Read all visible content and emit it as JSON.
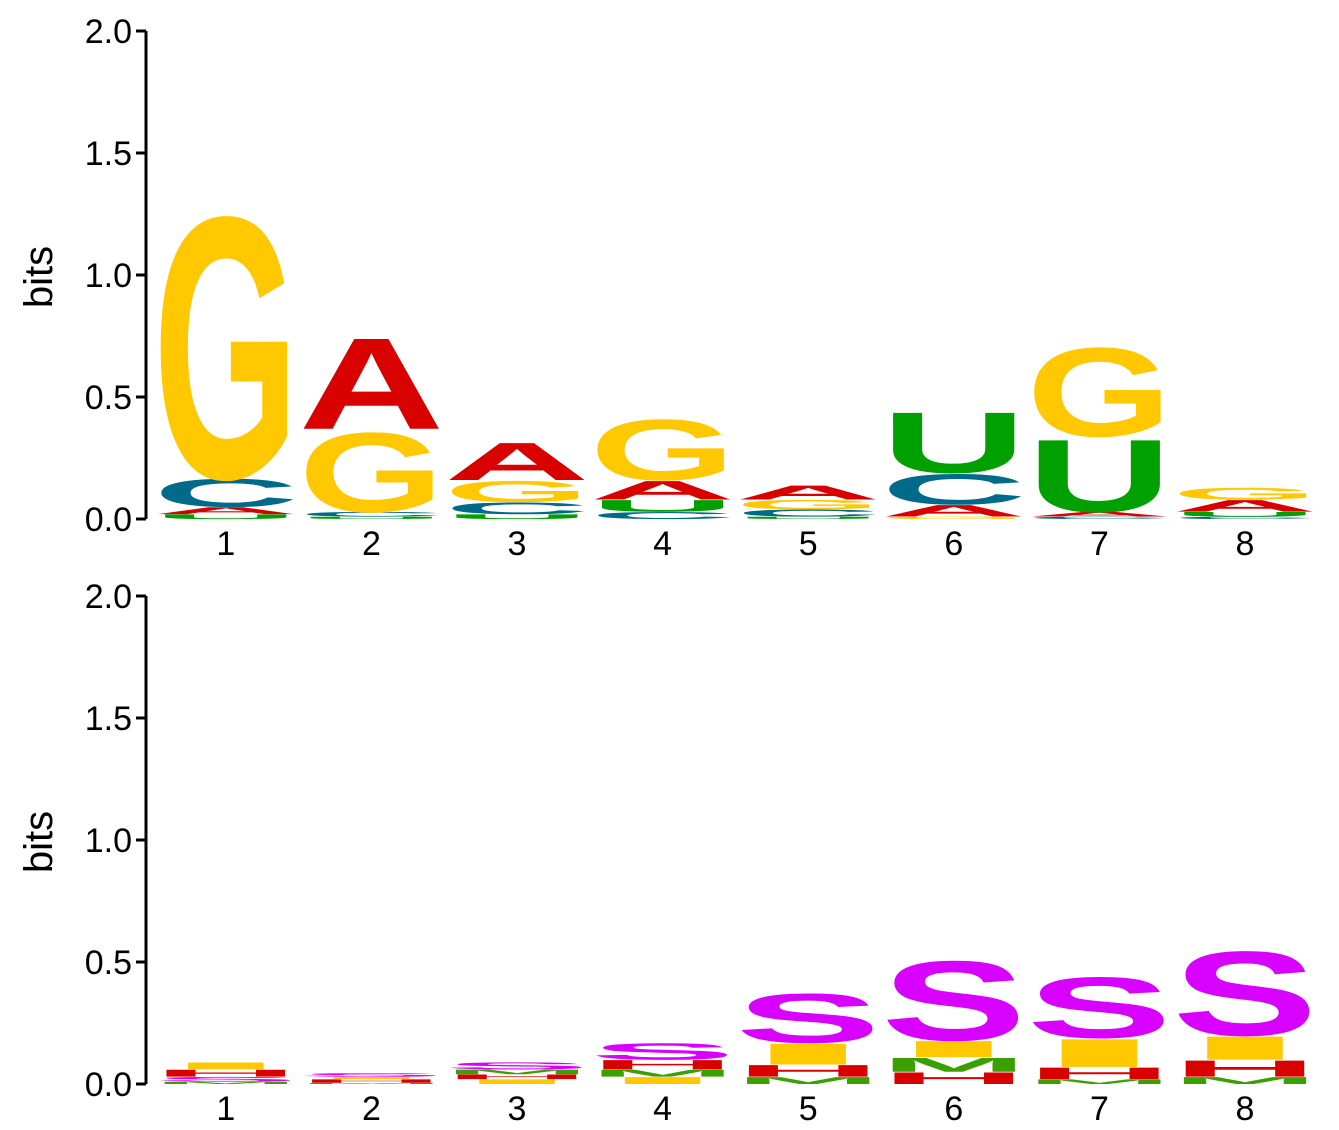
{
  "chart_data": [
    {
      "type": "sequence-logo",
      "ylabel": "bits",
      "ylim": [
        0,
        2.0
      ],
      "yticks": [
        "0.0",
        "0.5",
        "1.0",
        "1.5",
        "2.0"
      ],
      "positions": [
        "1",
        "2",
        "3",
        "4",
        "5",
        "6",
        "7",
        "8"
      ],
      "stacks": [
        [
          {
            "letter": "U",
            "bits": 0.02
          },
          {
            "letter": "A",
            "bits": 0.03
          },
          {
            "letter": "C",
            "bits": 0.12
          },
          {
            "letter": "G",
            "bits": 1.12
          }
        ],
        [
          {
            "letter": "U",
            "bits": 0.01
          },
          {
            "letter": "C",
            "bits": 0.02
          },
          {
            "letter": "G",
            "bits": 0.34
          },
          {
            "letter": "A",
            "bits": 0.39
          }
        ],
        [
          {
            "letter": "U",
            "bits": 0.02
          },
          {
            "letter": "C",
            "bits": 0.05
          },
          {
            "letter": "G",
            "bits": 0.09
          },
          {
            "letter": "A",
            "bits": 0.16
          }
        ],
        [
          {
            "letter": "C",
            "bits": 0.03
          },
          {
            "letter": "U",
            "bits": 0.05
          },
          {
            "letter": "A",
            "bits": 0.08
          },
          {
            "letter": "G",
            "bits": 0.26
          }
        ],
        [
          {
            "letter": "U",
            "bits": 0.01
          },
          {
            "letter": "C",
            "bits": 0.03
          },
          {
            "letter": "G",
            "bits": 0.04
          },
          {
            "letter": "A",
            "bits": 0.06
          }
        ],
        [
          {
            "letter": "G",
            "bits": 0.01
          },
          {
            "letter": "A",
            "bits": 0.05
          },
          {
            "letter": "C",
            "bits": 0.13
          },
          {
            "letter": "U",
            "bits": 0.26
          }
        ],
        [
          {
            "letter": "C",
            "bits": 0.01
          },
          {
            "letter": "A",
            "bits": 0.02
          },
          {
            "letter": "U",
            "bits": 0.31
          },
          {
            "letter": "G",
            "bits": 0.38
          }
        ],
        [
          {
            "letter": "C",
            "bits": 0.01
          },
          {
            "letter": "U",
            "bits": 0.02
          },
          {
            "letter": "A",
            "bits": 0.05
          },
          {
            "letter": "G",
            "bits": 0.05
          }
        ]
      ]
    },
    {
      "type": "sequence-logo",
      "ylabel": "bits",
      "ylim": [
        0,
        2.0
      ],
      "yticks": [
        "0.0",
        "0.5",
        "1.0",
        "1.5",
        "2.0"
      ],
      "positions": [
        "1",
        "2",
        "3",
        "4",
        "5",
        "6",
        "7",
        "8"
      ],
      "stacks": [
        [
          {
            "letter": "M",
            "bits": 0.01
          },
          {
            "letter": "S",
            "bits": 0.02
          },
          {
            "letter": "H",
            "bits": 0.03
          },
          {
            "letter": "I",
            "bits": 0.03
          }
        ],
        [
          {
            "letter": "M",
            "bits": 0.005
          },
          {
            "letter": "H",
            "bits": 0.015
          },
          {
            "letter": "I",
            "bits": 0.01
          },
          {
            "letter": "S",
            "bits": 0.015
          }
        ],
        [
          {
            "letter": "I",
            "bits": 0.02
          },
          {
            "letter": "H",
            "bits": 0.02
          },
          {
            "letter": "M",
            "bits": 0.02
          },
          {
            "letter": "S",
            "bits": 0.03
          }
        ],
        [
          {
            "letter": "I",
            "bits": 0.03
          },
          {
            "letter": "M",
            "bits": 0.03
          },
          {
            "letter": "H",
            "bits": 0.04
          },
          {
            "letter": "S",
            "bits": 0.07
          }
        ],
        [
          {
            "letter": "M",
            "bits": 0.03
          },
          {
            "letter": "H",
            "bits": 0.05
          },
          {
            "letter": "I",
            "bits": 0.09
          },
          {
            "letter": "S",
            "bits": 0.21
          }
        ],
        [
          {
            "letter": "H",
            "bits": 0.05
          },
          {
            "letter": "M",
            "bits": 0.06
          },
          {
            "letter": "I",
            "bits": 0.07
          },
          {
            "letter": "S",
            "bits": 0.34
          }
        ],
        [
          {
            "letter": "M",
            "bits": 0.02
          },
          {
            "letter": "H",
            "bits": 0.05
          },
          {
            "letter": "I",
            "bits": 0.12
          },
          {
            "letter": "S",
            "bits": 0.26
          }
        ],
        [
          {
            "letter": "M",
            "bits": 0.03
          },
          {
            "letter": "H",
            "bits": 0.07
          },
          {
            "letter": "I",
            "bits": 0.1
          },
          {
            "letter": "S",
            "bits": 0.36
          }
        ]
      ]
    }
  ],
  "colors": {
    "A": "#d90000",
    "C": "#006a8a",
    "G": "#ffc800",
    "U": "#00a000",
    "S": "#d800ff",
    "I": "#ffc800",
    "H": "#d90000",
    "M": "#3aa000",
    "axis": "#000000",
    "text": "#000000"
  }
}
